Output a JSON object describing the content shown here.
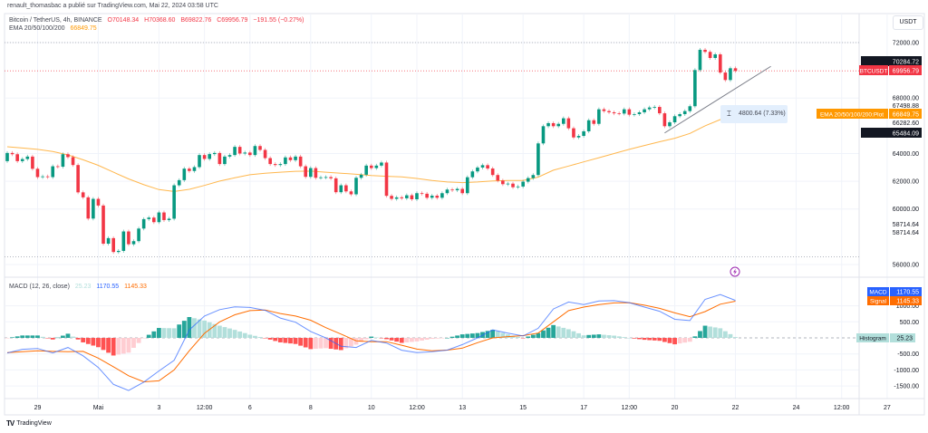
{
  "header": {
    "published": "renault_thomasbac a publié sur TradingView.com, Mai 22, 2024 03:58 UTC",
    "symbol": "Bitcoin / TetherUS, 4h, BINANCE",
    "open": "O70148.34",
    "high": "H70368.60",
    "low": "B69822.76",
    "close": "C69956.79",
    "change": "−191.55 (−0.27%)",
    "ema_label": "EMA 20/50/100/200",
    "ema_value": "66849.75",
    "macd_label": "MACD (12, 26, close)",
    "macd_hist": "25.23",
    "macd_value": "1170.55",
    "macd_signal": "1145.33"
  },
  "currency_button": "USDT",
  "brand": "TradingView",
  "measure": {
    "text": "4800.64 (7.33%)",
    "icon": "price-range-icon"
  },
  "event_icon": "lightning-icon",
  "colors": {
    "up": "#089981",
    "down": "#f23645",
    "ema": "#ffb74d",
    "macd": "#2962ff",
    "signal": "#ff6d00",
    "hist_up_strong": "#26a69a",
    "hist_up_weak": "#b2dfdb",
    "hist_down_strong": "#ff5252",
    "hist_down_weak": "#ffcdd2",
    "last_price": "#f23645",
    "event": "#9c27b0"
  },
  "price_labels": {
    "high_box": "70284.72",
    "symbol_tag": "BTCUSDT",
    "last_price": "69956.79",
    "level_1": "67498.88",
    "ema_tag": "EMA 20/50/100/200:Plot",
    "ema_price": "66849.75",
    "level_2": "66282.60",
    "low_box": "65484.09",
    "macd_tag": "MACD",
    "macd_price": "1170.55",
    "signal_tag": "Signal",
    "signal_price": "1145.33",
    "hist_tag": "Histogram",
    "hist_price": "25.23"
  },
  "chart_data": {
    "type": "candlestick",
    "symbol": "BTCUSDT",
    "interval": "4h",
    "start": "04-28 00:00",
    "open_first": 63450,
    "close": [
      64040,
      63950,
      63450,
      63600,
      63780,
      62900,
      62300,
      62350,
      62300,
      63080,
      63050,
      63950,
      63740,
      63170,
      61200,
      60840,
      59310,
      60730,
      60250,
      57500,
      57900,
      56900,
      56980,
      58380,
      57460,
      57680,
      58590,
      59270,
      59380,
      59050,
      59750,
      59200,
      59300,
      61710,
      62080,
      62910,
      62740,
      63020,
      63890,
      63610,
      63960,
      64040,
      63240,
      63780,
      63890,
      64480,
      64000,
      64070,
      63890,
      64540,
      64260,
      63670,
      63240,
      63170,
      63240,
      63720,
      63520,
      63780,
      63080,
      62320,
      62950,
      62250,
      62280,
      62300,
      62210,
      61210,
      61710,
      61270,
      61060,
      62250,
      62470,
      63130,
      62950,
      63130,
      63350,
      60950,
      60730,
      60840,
      60770,
      60990,
      60700,
      61140,
      61100,
      60810,
      60960,
      60810,
      61140,
      61400,
      61350,
      61450,
      61140,
      62290,
      62710,
      62990,
      63160,
      62920,
      62450,
      62050,
      61790,
      61830,
      61570,
      61620,
      61970,
      62230,
      62450,
      64730,
      65970,
      66190,
      65970,
      66140,
      66540,
      65820,
      65160,
      65270,
      65600,
      66400,
      66140,
      67190,
      67060,
      66970,
      66900,
      66880,
      67190,
      66800,
      66840,
      66970,
      67190,
      67320,
      67360,
      66900,
      65970,
      66250,
      66690,
      66840,
      67060,
      67410,
      70020,
      71480,
      71330,
      70890,
      71150,
      69840,
      69300,
      70148.34,
      69956.79
    ],
    "price_axis": {
      "range": [
        55500,
        73000
      ],
      "ticks": [
        {
          "label": "72000.00",
          "value": 72000
        },
        {
          "label": "68000.00",
          "value": 68000
        },
        {
          "label": "64000.00",
          "value": 64000
        },
        {
          "label": "62000.00",
          "value": 62000
        },
        {
          "label": "60000.00",
          "value": 60000
        },
        {
          "label": "58714.64",
          "value": 58900
        },
        {
          "label": "58714.64",
          "value": 58300
        },
        {
          "label": "56000.00",
          "value": 56000
        }
      ]
    },
    "time_axis": {
      "ticks": [
        {
          "label": "29",
          "t": "04-29 00:00"
        },
        {
          "label": "Mai",
          "t": "05-01 00:00"
        },
        {
          "label": "3",
          "t": "05-03 00:00"
        },
        {
          "label": "12:00",
          "t": "05-04 12:00"
        },
        {
          "label": "6",
          "t": "05-06 00:00"
        },
        {
          "label": "8",
          "t": "05-08 00:00"
        },
        {
          "label": "10",
          "t": "05-10 00:00"
        },
        {
          "label": "12:00",
          "t": "05-11 12:00"
        },
        {
          "label": "13",
          "t": "05-13 00:00"
        },
        {
          "label": "15",
          "t": "05-15 00:00"
        },
        {
          "label": "17",
          "t": "05-17 00:00"
        },
        {
          "label": "12:00",
          "t": "05-18 12:00"
        },
        {
          "label": "20",
          "t": "05-20 00:00"
        },
        {
          "label": "22",
          "t": "05-22 00:00"
        },
        {
          "label": "24",
          "t": "05-24 00:00"
        },
        {
          "label": "12:00",
          "t": "05-25 12:00"
        },
        {
          "label": "27",
          "t": "05-27 00:00"
        }
      ]
    },
    "last_price": 69956.79,
    "range_high": 72000,
    "range_low": 56550,
    "trendline": {
      "from": {
        "t": "05-19 16:00",
        "price": 65484.09
      },
      "to": {
        "t": "05-23 04:00",
        "price": 70284.72
      }
    },
    "indicator_t": [
      "04-28 00:00",
      "04-28 12:00",
      "04-29 00:00",
      "04-29 12:00",
      "04-30 00:00",
      "04-30 12:00",
      "05-01 00:00",
      "05-01 12:00",
      "05-02 00:00",
      "05-02 12:00",
      "05-03 00:00",
      "05-03 12:00",
      "05-04 00:00",
      "05-04 12:00",
      "05-05 00:00",
      "05-05 12:00",
      "05-06 00:00",
      "05-06 12:00",
      "05-07 00:00",
      "05-07 12:00",
      "05-08 00:00",
      "05-08 12:00",
      "05-09 00:00",
      "05-09 12:00",
      "05-10 00:00",
      "05-10 12:00",
      "05-11 00:00",
      "05-11 12:00",
      "05-12 00:00",
      "05-12 12:00",
      "05-13 00:00",
      "05-13 12:00",
      "05-14 00:00",
      "05-14 12:00",
      "05-15 00:00",
      "05-15 12:00",
      "05-16 00:00",
      "05-16 12:00",
      "05-17 00:00",
      "05-17 12:00",
      "05-18 00:00",
      "05-18 12:00",
      "05-19 00:00",
      "05-19 12:00",
      "05-20 00:00",
      "05-20 12:00",
      "05-21 00:00",
      "05-21 12:00",
      "05-22 00:00"
    ],
    "ema": [
      64490,
      64400,
      64300,
      64150,
      63900,
      63550,
      63150,
      62650,
      62170,
      61750,
      61400,
      61260,
      61420,
      61700,
      62010,
      62250,
      62470,
      62580,
      62650,
      62720,
      62730,
      62650,
      62580,
      62500,
      62420,
      62360,
      62320,
      62200,
      62050,
      61950,
      61900,
      61950,
      62020,
      62050,
      62060,
      62300,
      62800,
      63100,
      63400,
      63700,
      64000,
      64300,
      64580,
      64850,
      65100,
      65450,
      66000,
      66450,
      66849.75
    ],
    "macd": {
      "range": [
        -1800,
        1700
      ],
      "ticks": [
        {
          "label": "1000.00",
          "value": 1000
        },
        {
          "label": "500.00",
          "value": 500
        },
        {
          "label": "-500.00",
          "value": -500
        },
        {
          "label": "-1000.00",
          "value": -1000
        },
        {
          "label": "-1500.00",
          "value": -1500
        }
      ],
      "macd": [
        -470,
        -355,
        -330,
        -470,
        -300,
        -560,
        -920,
        -1450,
        -1640,
        -1380,
        -1030,
        -700,
        250,
        680,
        880,
        970,
        950,
        860,
        620,
        490,
        200,
        0,
        -260,
        -300,
        -80,
        -160,
        -385,
        -460,
        -430,
        -380,
        -210,
        0,
        250,
        150,
        60,
        300,
        900,
        1120,
        1040,
        1150,
        1160,
        1100,
        960,
        830,
        580,
        540,
        1200,
        1350,
        1170.55
      ],
      "signal": [
        -460,
        -430,
        -405,
        -420,
        -430,
        -420,
        -630,
        -900,
        -1180,
        -1370,
        -1340,
        -1000,
        -400,
        140,
        500,
        720,
        850,
        870,
        760,
        680,
        550,
        320,
        120,
        -90,
        -120,
        -120,
        -230,
        -350,
        -400,
        -380,
        -320,
        -150,
        0,
        40,
        70,
        150,
        500,
        850,
        960,
        1040,
        1090,
        1100,
        1020,
        920,
        780,
        660,
        820,
        1050,
        1145.33
      ]
    }
  }
}
